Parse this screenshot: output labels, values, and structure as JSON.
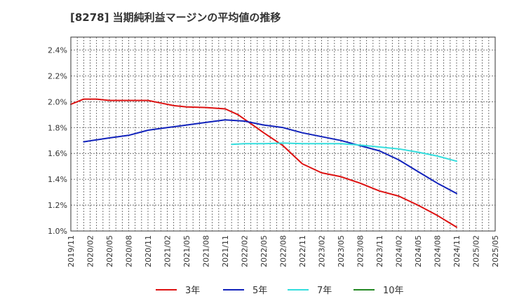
{
  "chart_data": {
    "type": "line",
    "title": "[8278]  当期純利益マージンの平均値の推移",
    "xlabel": "",
    "ylabel": "",
    "ylim": [
      1.0,
      2.5
    ],
    "y_ticks": [
      "1.0%",
      "1.2%",
      "1.4%",
      "1.6%",
      "1.8%",
      "2.0%",
      "2.2%",
      "2.4%"
    ],
    "y_tick_values": [
      1.0,
      1.2,
      1.4,
      1.6,
      1.8,
      2.0,
      2.2,
      2.4
    ],
    "x_ticks": [
      "2019/11",
      "2020/02",
      "2020/05",
      "2020/08",
      "2020/11",
      "2021/02",
      "2021/05",
      "2021/08",
      "2021/11",
      "2022/02",
      "2022/05",
      "2022/08",
      "2022/11",
      "2023/02",
      "2023/05",
      "2023/08",
      "2023/11",
      "2024/02",
      "2024/05",
      "2024/08",
      "2024/11",
      "2025/02",
      "2025/05"
    ],
    "grid": true,
    "legend_position": "bottom",
    "series": [
      {
        "name": "3年",
        "color": "#dd1111",
        "points": [
          [
            "2019/11",
            1.98
          ],
          [
            "2020/01",
            2.02
          ],
          [
            "2020/03",
            2.02
          ],
          [
            "2020/05",
            2.01
          ],
          [
            "2020/08",
            2.01
          ],
          [
            "2020/11",
            2.01
          ],
          [
            "2021/01",
            1.99
          ],
          [
            "2021/03",
            1.97
          ],
          [
            "2021/05",
            1.96
          ],
          [
            "2021/08",
            1.955
          ],
          [
            "2021/11",
            1.945
          ],
          [
            "2022/01",
            1.9
          ],
          [
            "2022/03",
            1.83
          ],
          [
            "2022/05",
            1.76
          ],
          [
            "2022/08",
            1.66
          ],
          [
            "2022/11",
            1.52
          ],
          [
            "2023/02",
            1.45
          ],
          [
            "2023/05",
            1.42
          ],
          [
            "2023/08",
            1.37
          ],
          [
            "2023/11",
            1.31
          ],
          [
            "2024/02",
            1.27
          ],
          [
            "2024/05",
            1.2
          ],
          [
            "2024/08",
            1.12
          ],
          [
            "2024/11",
            1.03
          ]
        ]
      },
      {
        "name": "5年",
        "color": "#1122bb",
        "points": [
          [
            "2020/01",
            1.69
          ],
          [
            "2020/05",
            1.72
          ],
          [
            "2020/08",
            1.74
          ],
          [
            "2020/11",
            1.78
          ],
          [
            "2021/02",
            1.8
          ],
          [
            "2021/05",
            1.82
          ],
          [
            "2021/08",
            1.84
          ],
          [
            "2021/11",
            1.86
          ],
          [
            "2022/02",
            1.85
          ],
          [
            "2022/05",
            1.82
          ],
          [
            "2022/08",
            1.8
          ],
          [
            "2022/11",
            1.76
          ],
          [
            "2023/02",
            1.73
          ],
          [
            "2023/05",
            1.7
          ],
          [
            "2023/08",
            1.66
          ],
          [
            "2023/11",
            1.62
          ],
          [
            "2024/02",
            1.55
          ],
          [
            "2024/05",
            1.46
          ],
          [
            "2024/08",
            1.37
          ],
          [
            "2024/11",
            1.29
          ]
        ]
      },
      {
        "name": "7年",
        "color": "#33dddd",
        "points": [
          [
            "2021/12",
            1.67
          ],
          [
            "2022/02",
            1.675
          ],
          [
            "2022/05",
            1.675
          ],
          [
            "2022/08",
            1.68
          ],
          [
            "2022/11",
            1.675
          ],
          [
            "2023/02",
            1.675
          ],
          [
            "2023/05",
            1.675
          ],
          [
            "2023/08",
            1.665
          ],
          [
            "2023/11",
            1.65
          ],
          [
            "2024/02",
            1.635
          ],
          [
            "2024/05",
            1.61
          ],
          [
            "2024/08",
            1.58
          ],
          [
            "2024/11",
            1.54
          ]
        ]
      },
      {
        "name": "10年",
        "color": "#228822",
        "points": []
      }
    ]
  }
}
